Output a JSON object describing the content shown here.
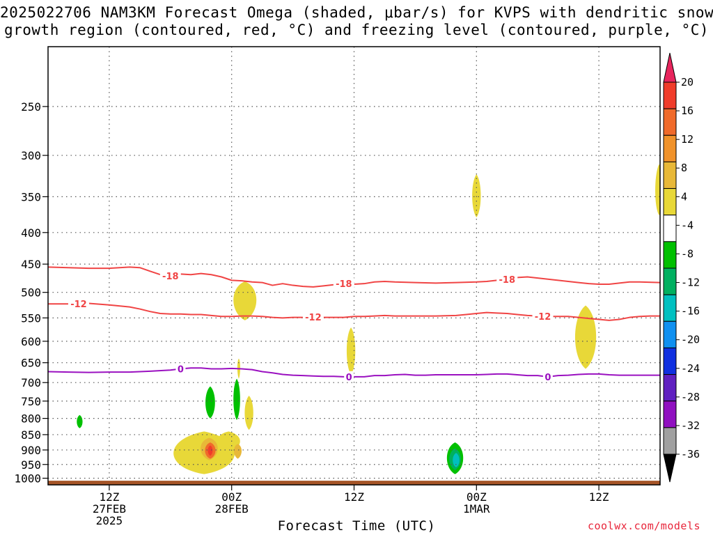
{
  "title_line1": "2025022706 NAM3KM Forecast Omega (shaded, μbar/s) for KVPS with dendritic snow",
  "title_line2": "growth region (contoured, red, °C) and freezing level (contoured, purple, °C)",
  "xlabel": "Forecast Time (UTC)",
  "credit": "coolwx.com/models",
  "chart_data": {
    "type": "heatmap",
    "y_axis": {
      "label": "",
      "scale": "log-pressure",
      "inverted": true,
      "range": [
        200,
        1025
      ],
      "ticks": [
        250,
        300,
        350,
        400,
        450,
        500,
        550,
        600,
        650,
        700,
        750,
        800,
        850,
        900,
        950,
        1000
      ]
    },
    "x_axis": {
      "label": "Forecast Time (UTC)",
      "range_hours_from_init": [
        0,
        60
      ],
      "ticks": [
        {
          "hour": 6,
          "lines": [
            "12Z",
            "27FEB",
            "2025"
          ]
        },
        {
          "hour": 18,
          "lines": [
            "00Z",
            "28FEB"
          ]
        },
        {
          "hour": 30,
          "lines": [
            "12Z"
          ]
        },
        {
          "hour": 42,
          "lines": [
            "00Z",
            "1MAR"
          ]
        },
        {
          "hour": 54,
          "lines": [
            "12Z"
          ]
        }
      ]
    },
    "grid": true,
    "colorbar": {
      "labels": [
        20,
        16,
        12,
        8,
        4,
        -4,
        -8,
        -12,
        -16,
        -20,
        -24,
        -28,
        -32,
        -36
      ],
      "colors": [
        "#e8255d",
        "#f03c2a",
        "#f06a2a",
        "#f0922a",
        "#e8b838",
        "#e8d838",
        "#ffffff",
        "#00c000",
        "#00b060",
        "#00c0c0",
        "#1090f0",
        "#1030e0",
        "#6020c0",
        "#9010c0",
        "#a0a0a0",
        "#000000"
      ]
    },
    "contours": [
      {
        "name": "-18",
        "color": "#f04444",
        "label_value": "-18",
        "points": [
          [
            0,
            455
          ],
          [
            2,
            456
          ],
          [
            4,
            457
          ],
          [
            6,
            457
          ],
          [
            8,
            455
          ],
          [
            9,
            456
          ],
          [
            10,
            462
          ],
          [
            11,
            468
          ],
          [
            12,
            470
          ],
          [
            13,
            467
          ],
          [
            14,
            468
          ],
          [
            15,
            466
          ],
          [
            16,
            468
          ],
          [
            17,
            472
          ],
          [
            18,
            478
          ],
          [
            19,
            479
          ],
          [
            20,
            481
          ],
          [
            21,
            482
          ],
          [
            22,
            487
          ],
          [
            23,
            484
          ],
          [
            24,
            487
          ],
          [
            25,
            489
          ],
          [
            26,
            490
          ],
          [
            27,
            488
          ],
          [
            28,
            486
          ],
          [
            29,
            484
          ],
          [
            30,
            485
          ],
          [
            31,
            484
          ],
          [
            32,
            481
          ],
          [
            33,
            480
          ],
          [
            34,
            481
          ],
          [
            36,
            482
          ],
          [
            38,
            483
          ],
          [
            40,
            482
          ],
          [
            42,
            481
          ],
          [
            43,
            480
          ],
          [
            44,
            478
          ],
          [
            45,
            476
          ],
          [
            46,
            473
          ],
          [
            47,
            472
          ],
          [
            48,
            474
          ],
          [
            49,
            476
          ],
          [
            50,
            478
          ],
          [
            51,
            480
          ],
          [
            52,
            482
          ],
          [
            53,
            484
          ],
          [
            54,
            485
          ],
          [
            55,
            485
          ],
          [
            56,
            483
          ],
          [
            57,
            481
          ],
          [
            58,
            481
          ],
          [
            60,
            482
          ]
        ],
        "labels_at_hours": [
          12,
          29,
          45
        ]
      },
      {
        "name": "-12",
        "color": "#f04444",
        "label_value": "-12",
        "points": [
          [
            0,
            522
          ],
          [
            2,
            522
          ],
          [
            4,
            521
          ],
          [
            6,
            524
          ],
          [
            8,
            528
          ],
          [
            9,
            532
          ],
          [
            10,
            537
          ],
          [
            11,
            541
          ],
          [
            12,
            542
          ],
          [
            13,
            542
          ],
          [
            14,
            543
          ],
          [
            15,
            543
          ],
          [
            16,
            545
          ],
          [
            17,
            547
          ],
          [
            18,
            547
          ],
          [
            19,
            546
          ],
          [
            20,
            546
          ],
          [
            21,
            547
          ],
          [
            22,
            549
          ],
          [
            23,
            550
          ],
          [
            24,
            549
          ],
          [
            25,
            549
          ],
          [
            26,
            548
          ],
          [
            27,
            549
          ],
          [
            28,
            549
          ],
          [
            29,
            549
          ],
          [
            30,
            547
          ],
          [
            31,
            547
          ],
          [
            32,
            546
          ],
          [
            33,
            545
          ],
          [
            34,
            546
          ],
          [
            36,
            546
          ],
          [
            38,
            546
          ],
          [
            40,
            545
          ],
          [
            41,
            543
          ],
          [
            42,
            541
          ],
          [
            43,
            539
          ],
          [
            44,
            540
          ],
          [
            45,
            541
          ],
          [
            46,
            543
          ],
          [
            47,
            545
          ],
          [
            48,
            546
          ],
          [
            49,
            547
          ],
          [
            50,
            547
          ],
          [
            51,
            547
          ],
          [
            52,
            549
          ],
          [
            53,
            551
          ],
          [
            54,
            553
          ],
          [
            55,
            555
          ],
          [
            56,
            553
          ],
          [
            57,
            549
          ],
          [
            58,
            547
          ],
          [
            59,
            546
          ],
          [
            60,
            546
          ]
        ],
        "labels_at_hours": [
          3,
          26,
          48.5
        ]
      },
      {
        "name": "0",
        "color": "#9a10c0",
        "label_value": "0",
        "points": [
          [
            0,
            672
          ],
          [
            2,
            673
          ],
          [
            4,
            674
          ],
          [
            6,
            673
          ],
          [
            8,
            673
          ],
          [
            10,
            671
          ],
          [
            12,
            668
          ],
          [
            13,
            665
          ],
          [
            14,
            663
          ],
          [
            15,
            663
          ],
          [
            16,
            665
          ],
          [
            17,
            665
          ],
          [
            18,
            664
          ],
          [
            19,
            665
          ],
          [
            20,
            667
          ],
          [
            21,
            672
          ],
          [
            22,
            675
          ],
          [
            23,
            679
          ],
          [
            24,
            681
          ],
          [
            25,
            682
          ],
          [
            26,
            683
          ],
          [
            27,
            684
          ],
          [
            28,
            684
          ],
          [
            29,
            685
          ],
          [
            30,
            685
          ],
          [
            31,
            685
          ],
          [
            32,
            682
          ],
          [
            33,
            682
          ],
          [
            34,
            680
          ],
          [
            35,
            679
          ],
          [
            36,
            681
          ],
          [
            37,
            681
          ],
          [
            38,
            680
          ],
          [
            39,
            680
          ],
          [
            40,
            680
          ],
          [
            41,
            680
          ],
          [
            42,
            680
          ],
          [
            43,
            679
          ],
          [
            44,
            678
          ],
          [
            45,
            678
          ],
          [
            46,
            680
          ],
          [
            47,
            682
          ],
          [
            48,
            682
          ],
          [
            49,
            685
          ],
          [
            50,
            682
          ],
          [
            51,
            681
          ],
          [
            52,
            679
          ],
          [
            53,
            678
          ],
          [
            54,
            678
          ],
          [
            55,
            680
          ],
          [
            56,
            681
          ],
          [
            58,
            681
          ],
          [
            60,
            681
          ]
        ],
        "labels_at_hours": [
          13,
          29.5,
          49
        ]
      }
    ],
    "shaded_regions": [
      {
        "level": 4,
        "color": "#e8d838",
        "hour": 42,
        "p": 348,
        "hw": 0.45,
        "p_top": 322,
        "p_bot": 378
      },
      {
        "level": 4,
        "color": "#e8d838",
        "hour": 59.9,
        "p": 345,
        "hw": 0.4,
        "p_top": 310,
        "p_bot": 375
      },
      {
        "level": 4,
        "color": "#e8d838",
        "hour": 19.3,
        "p": 510,
        "hw": 1.2,
        "p_top": 480,
        "p_bot": 555
      },
      {
        "level": 4,
        "color": "#e8d838",
        "hour": 29.7,
        "p": 620,
        "hw": 0.45,
        "p_top": 570,
        "p_bot": 680
      },
      {
        "level": 4,
        "color": "#e8d838",
        "hour": 52.7,
        "p": 590,
        "hw": 1.1,
        "p_top": 525,
        "p_bot": 665
      },
      {
        "level": 4,
        "color": "#e8d838",
        "hour": 19.7,
        "p": 785,
        "hw": 0.45,
        "p_top": 735,
        "p_bot": 835
      },
      {
        "level": 4,
        "color": "#e8d838",
        "hour": 18.7,
        "p": 655,
        "hw": 0.15,
        "p_top": 640,
        "p_bot": 690
      },
      {
        "level": 4,
        "color": "#e8d838",
        "hour": 15.3,
        "p": 915,
        "hw": 3.2,
        "p_top": 840,
        "p_bot": 985
      },
      {
        "level": 4,
        "color": "#e8d838",
        "hour": 17.7,
        "p": 870,
        "hw": 1.2,
        "p_top": 840,
        "p_bot": 905
      },
      {
        "level": 8,
        "color": "#e8b838",
        "hour": 15.8,
        "p": 890,
        "hw": 0.9,
        "p_top": 860,
        "p_bot": 935
      },
      {
        "level": 8,
        "color": "#e8b838",
        "hour": 18.6,
        "p": 900,
        "hw": 0.4,
        "p_top": 880,
        "p_bot": 930
      },
      {
        "level": 12,
        "color": "#f06a2a",
        "hour": 15.9,
        "p": 900,
        "hw": 0.55,
        "p_top": 875,
        "p_bot": 930
      },
      {
        "level": 16,
        "color": "#f03c2a",
        "hour": 15.9,
        "p": 900,
        "hw": 0.25,
        "p_top": 885,
        "p_bot": 920
      },
      {
        "level": -4,
        "color": "#00c000",
        "hour": 3.1,
        "p": 810,
        "hw": 0.3,
        "p_top": 790,
        "p_bot": 830
      },
      {
        "level": -4,
        "color": "#00c000",
        "hour": 15.9,
        "p": 755,
        "hw": 0.5,
        "p_top": 710,
        "p_bot": 800
      },
      {
        "level": -4,
        "color": "#00c000",
        "hour": 18.5,
        "p": 745,
        "hw": 0.35,
        "p_top": 690,
        "p_bot": 805
      },
      {
        "level": -4,
        "color": "#00c000",
        "hour": 39.9,
        "p": 925,
        "hw": 0.85,
        "p_top": 875,
        "p_bot": 985
      },
      {
        "level": -8,
        "color": "#00b060",
        "hour": 39.9,
        "p": 930,
        "hw": 0.6,
        "p_top": 895,
        "p_bot": 970
      },
      {
        "level": -12,
        "color": "#00c0c0",
        "hour": 40,
        "p": 935,
        "hw": 0.35,
        "p_top": 910,
        "p_bot": 960
      }
    ],
    "surface_bar_color": "#a55528"
  }
}
